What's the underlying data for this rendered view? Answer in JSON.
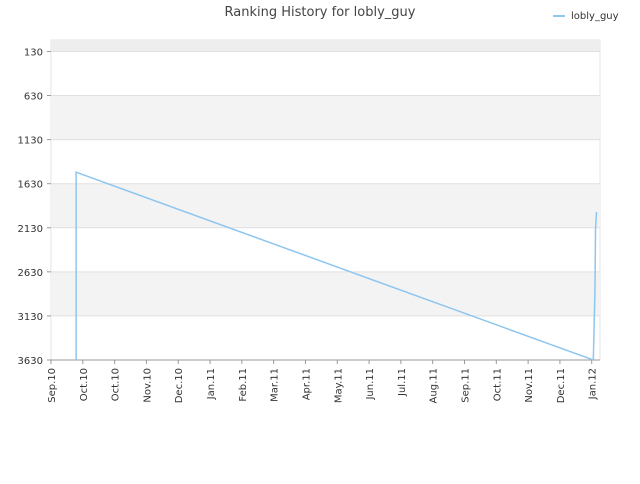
{
  "chart_data": {
    "type": "line",
    "title": "Ranking History for lobly_guy",
    "x": [
      0.79,
      0.79,
      17.05,
      17.1,
      17.12,
      17.15
    ],
    "series": [
      {
        "name": "lobly_guy",
        "color": "#8ec6ef",
        "values": [
          3630,
          1500,
          3630,
          2870,
          2150,
          1950
        ]
      }
    ],
    "xlim": [
      0,
      17.26
    ],
    "xticks": [
      {
        "value": 0,
        "label": "Sep.10"
      },
      {
        "value": 1,
        "label": "Oct.10"
      },
      {
        "value": 2,
        "label": "Oct.10"
      },
      {
        "value": 3,
        "label": "Nov.10"
      },
      {
        "value": 4,
        "label": "Dec.10"
      },
      {
        "value": 5,
        "label": "Jan.11"
      },
      {
        "value": 6,
        "label": "Feb.11"
      },
      {
        "value": 7,
        "label": "Mar.11"
      },
      {
        "value": 8,
        "label": "Apr.11"
      },
      {
        "value": 9,
        "label": "May.11"
      },
      {
        "value": 10,
        "label": "Jun.11"
      },
      {
        "value": 11,
        "label": "Jul.11"
      },
      {
        "value": 12,
        "label": "Aug.11"
      },
      {
        "value": 13,
        "label": "Sep.11"
      },
      {
        "value": 14,
        "label": "Oct.11"
      },
      {
        "value": 15,
        "label": "Nov.11"
      },
      {
        "value": 16,
        "label": "Dec.11"
      },
      {
        "value": 17,
        "label": "Jan.12"
      }
    ],
    "ylim": [
      0,
      3630
    ],
    "y_reversed": true,
    "yticks": [
      130,
      630,
      1130,
      1630,
      2130,
      2630,
      3130,
      3630
    ],
    "grid": true,
    "legend": "upper right"
  }
}
